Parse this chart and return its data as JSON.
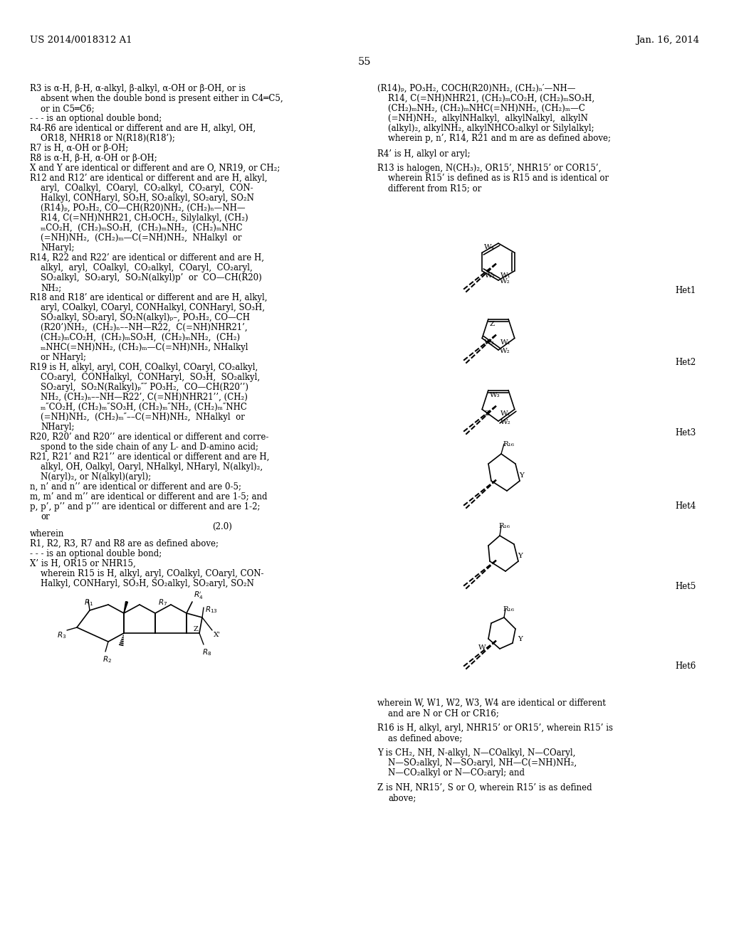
{
  "bg_color": "#ffffff",
  "header_left": "US 2014/0018312 A1",
  "header_right": "Jan. 16, 2014",
  "page_number": "55",
  "font_size_body": 8.5,
  "font_size_header": 9.5
}
